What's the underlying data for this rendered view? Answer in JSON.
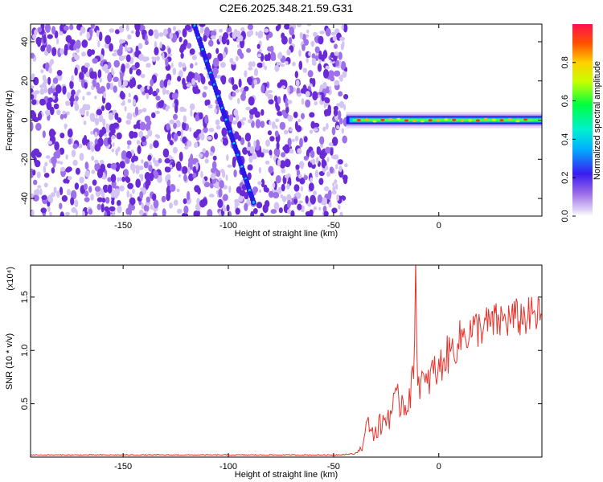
{
  "chart_data": [
    {
      "type": "heatmap",
      "title": "C2E6.2025.348.21.59.G31",
      "xlabel": "Height of straight line (km)",
      "ylabel": "Frequency (Hz)",
      "xlim": [
        -194,
        49
      ],
      "ylim": [
        -49,
        49
      ],
      "xticks": [
        -150,
        -100,
        -50,
        0
      ],
      "yticks": [
        -40,
        -20,
        0,
        20,
        40
      ],
      "noise_region_x": [
        -194,
        -44
      ],
      "diagonal_track": {
        "x_start": -116,
        "y_start": 48,
        "x_end": -88,
        "y_end": -42
      },
      "carrier_line": {
        "x_start": -44,
        "x_end": 49,
        "frequency": 0,
        "amplitude": 0.9
      }
    },
    {
      "type": "colorbar",
      "label": "Normalized spectral amplitude",
      "range": [
        0,
        1
      ],
      "ticks": [
        "0.0",
        "0.2",
        "0.4",
        "0.6",
        "0.8"
      ]
    },
    {
      "type": "line",
      "xlabel": "Height of straight line (km)",
      "ylabel": "SNR (10 * v/v)",
      "yscale_label": "(x10⁴)",
      "xlim": [
        -194,
        49
      ],
      "ylim": [
        0,
        1.8
      ],
      "xticks": [
        -150,
        -100,
        -50,
        0
      ],
      "yticks": [
        "0.5",
        "1.0",
        "1.5"
      ],
      "series": [
        {
          "name": "SNR",
          "color": "#e8322b",
          "x": [
            -194,
            -150,
            -100,
            -50,
            -40,
            -36,
            -34,
            -32,
            -30,
            -28,
            -26,
            -24,
            -22,
            -20,
            -18,
            -16,
            -14,
            -12,
            -11,
            -10,
            -8,
            -6,
            -4,
            -2,
            0,
            2,
            4,
            6,
            8,
            10,
            12,
            15,
            20,
            25,
            30,
            35,
            40,
            45,
            49
          ],
          "values": [
            0.02,
            0.02,
            0.02,
            0.02,
            0.03,
            0.1,
            0.35,
            0.25,
            0.22,
            0.3,
            0.33,
            0.4,
            0.45,
            0.48,
            0.55,
            0.5,
            0.6,
            0.7,
            1.8,
            0.7,
            0.72,
            0.62,
            0.78,
            0.8,
            0.8,
            0.92,
            0.95,
            1.0,
            1.05,
            1.1,
            1.15,
            1.18,
            1.22,
            1.25,
            1.28,
            1.3,
            1.31,
            1.32,
            1.33
          ]
        }
      ]
    }
  ]
}
